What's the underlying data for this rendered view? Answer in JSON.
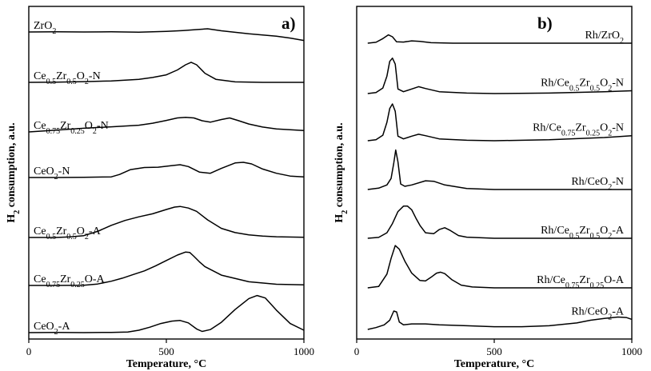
{
  "chart_data": [
    {
      "type": "line",
      "panel_label": "a)",
      "ylabel": "H",
      "ylabel_sub": "2",
      "ylabel_rest": " consumption, a.u.",
      "xlabel": "Temperature, °C",
      "xlim": [
        0,
        1000
      ],
      "xticks": [
        0,
        500,
        1000
      ],
      "yticks": [],
      "series": [
        {
          "label": [
            {
              "t": "ZrO"
            },
            {
              "t": "2",
              "sub": true
            }
          ],
          "baseline": 1.0,
          "x": [
            0,
            100,
            200,
            300,
            400,
            500,
            560,
            610,
            650,
            700,
            800,
            900,
            950,
            1000
          ],
          "y": [
            0,
            0.02,
            0,
            0.01,
            -0.01,
            0.05,
            0.12,
            0.2,
            0.26,
            0.1,
            -0.15,
            -0.35,
            -0.5,
            -0.7
          ]
        },
        {
          "label": [
            {
              "t": "Ce"
            },
            {
              "t": "0.5",
              "sub": true
            },
            {
              "t": "Zr"
            },
            {
              "t": "0.5",
              "sub": true
            },
            {
              "t": "O"
            },
            {
              "t": "2",
              "sub": true
            },
            {
              "t": "-N"
            }
          ],
          "baseline": 2.55,
          "x": [
            0,
            100,
            200,
            300,
            400,
            450,
            500,
            540,
            570,
            590,
            610,
            640,
            680,
            750,
            850,
            1000
          ],
          "y": [
            0,
            0.02,
            0.06,
            0.12,
            0.25,
            0.4,
            0.62,
            1.02,
            1.45,
            1.65,
            1.45,
            0.75,
            0.25,
            0.04,
            0,
            0
          ]
        },
        {
          "label": [
            {
              "t": "Ce"
            },
            {
              "t": "0.75",
              "sub": true
            },
            {
              "t": "Zr"
            },
            {
              "t": "0.25",
              "sub": true
            },
            {
              "t": "O"
            },
            {
              "t": "2",
              "sub": true
            },
            {
              "t": "-N"
            }
          ],
          "baseline": 4.08,
          "x": [
            0,
            100,
            200,
            300,
            400,
            450,
            500,
            540,
            570,
            600,
            630,
            660,
            700,
            730,
            760,
            800,
            850,
            900,
            1000
          ],
          "y": [
            0,
            0.15,
            0.3,
            0.42,
            0.55,
            0.72,
            0.95,
            1.15,
            1.2,
            1.15,
            0.92,
            0.8,
            1.02,
            1.15,
            0.95,
            0.65,
            0.4,
            0.25,
            0.12
          ]
        },
        {
          "label": [
            {
              "t": "CeO"
            },
            {
              "t": "2",
              "sub": true
            },
            {
              "t": "-N"
            }
          ],
          "baseline": 5.6,
          "x": [
            0,
            100,
            200,
            300,
            330,
            370,
            420,
            470,
            520,
            550,
            580,
            620,
            660,
            700,
            750,
            780,
            810,
            850,
            900,
            950,
            1000
          ],
          "y": [
            0,
            0,
            0.02,
            0.05,
            0.25,
            0.65,
            0.82,
            0.85,
            0.98,
            1.05,
            0.9,
            0.45,
            0.35,
            0.75,
            1.2,
            1.25,
            1.12,
            0.7,
            0.35,
            0.12,
            0.05
          ]
        },
        {
          "label": [
            {
              "t": "Ce"
            },
            {
              "t": "0.5",
              "sub": true
            },
            {
              "t": "Zr"
            },
            {
              "t": "0.5",
              "sub": true
            },
            {
              "t": "O"
            },
            {
              "t": "2",
              "sub": true
            },
            {
              "t": "-A"
            }
          ],
          "baseline": 7.1,
          "x": [
            0,
            100,
            150,
            200,
            250,
            300,
            350,
            400,
            450,
            500,
            530,
            550,
            580,
            610,
            650,
            700,
            750,
            800,
            850,
            900,
            1000
          ],
          "y": [
            0,
            0,
            0.05,
            0.15,
            0.5,
            1.0,
            1.4,
            1.7,
            1.95,
            2.3,
            2.5,
            2.55,
            2.42,
            2.15,
            1.45,
            0.75,
            0.4,
            0.22,
            0.12,
            0.06,
            0.02
          ]
        },
        {
          "label": [
            {
              "t": "Ce"
            },
            {
              "t": "0.75",
              "sub": true
            },
            {
              "t": "Zr"
            },
            {
              "t": "0.25",
              "sub": true
            },
            {
              "t": "O-A"
            }
          ],
          "baseline": 8.7,
          "x": [
            0,
            100,
            200,
            250,
            300,
            340,
            380,
            420,
            460,
            500,
            540,
            570,
            585,
            600,
            620,
            640,
            700,
            800,
            900,
            1000
          ],
          "y": [
            0,
            0,
            0.02,
            0.12,
            0.35,
            0.6,
            0.9,
            1.2,
            1.6,
            2.05,
            2.5,
            2.75,
            2.72,
            2.4,
            1.95,
            1.55,
            0.85,
            0.3,
            0.1,
            0.05
          ]
        },
        {
          "label": [
            {
              "t": "CeO"
            },
            {
              "t": "2",
              "sub": true
            },
            {
              "t": "-A"
            }
          ],
          "baseline": 10.3,
          "x": [
            0,
            100,
            200,
            300,
            360,
            400,
            440,
            480,
            520,
            550,
            580,
            610,
            630,
            660,
            700,
            750,
            800,
            830,
            860,
            900,
            950,
            1000
          ],
          "y": [
            0,
            0.02,
            0,
            0.02,
            0.05,
            0.2,
            0.45,
            0.75,
            0.95,
            1.0,
            0.8,
            0.3,
            0.1,
            0.25,
            0.85,
            1.9,
            2.8,
            3.05,
            2.85,
            1.85,
            0.75,
            0.2
          ]
        }
      ]
    },
    {
      "type": "line",
      "panel_label": "b)",
      "ylabel": "H",
      "ylabel_sub": "2",
      "ylabel_rest": " consumption, a.u.",
      "xlabel": "Temperature, °C",
      "xlim": [
        0,
        1000
      ],
      "xticks": [
        0,
        500,
        1000
      ],
      "yticks": [],
      "series": [
        {
          "label": [
            {
              "t": "Rh/ZrO"
            },
            {
              "t": "2",
              "sub": true
            }
          ],
          "baseline": 1.0,
          "x": [
            40,
            70,
            95,
            115,
            130,
            145,
            170,
            200,
            230,
            270,
            350,
            500,
            700,
            900,
            1000
          ],
          "y": [
            0,
            0.1,
            0.5,
            0.9,
            0.7,
            0.15,
            0.12,
            0.25,
            0.2,
            0.05,
            0,
            0,
            0,
            0,
            0
          ]
        },
        {
          "label": [
            {
              "t": "Rh/Ce"
            },
            {
              "t": "0.5",
              "sub": true
            },
            {
              "t": "Zr"
            },
            {
              "t": "0.5",
              "sub": true
            },
            {
              "t": "O"
            },
            {
              "t": "2",
              "sub": true
            },
            {
              "t": "-N"
            }
          ],
          "baseline": 2.55,
          "x": [
            40,
            70,
            95,
            110,
            120,
            130,
            140,
            150,
            170,
            200,
            225,
            250,
            300,
            400,
            500,
            700,
            900,
            1000
          ],
          "y": [
            0,
            0.1,
            0.6,
            1.9,
            3.5,
            3.85,
            3.2,
            0.5,
            0.2,
            0.5,
            0.75,
            0.55,
            0.2,
            0.05,
            0,
            0.05,
            0.2,
            0.3
          ]
        },
        {
          "label": [
            {
              "t": "Rh/Ce"
            },
            {
              "t": "0.75",
              "sub": true
            },
            {
              "t": "Zr"
            },
            {
              "t": "0.25",
              "sub": true
            },
            {
              "t": "O"
            },
            {
              "t": "2",
              "sub": true
            },
            {
              "t": "-N"
            }
          ],
          "baseline": 4.08,
          "x": [
            40,
            70,
            95,
            110,
            120,
            130,
            140,
            150,
            170,
            200,
            225,
            250,
            300,
            400,
            500,
            700,
            900,
            1000
          ],
          "y": [
            0,
            0.1,
            0.6,
            2.0,
            3.5,
            4.0,
            3.2,
            0.5,
            0.2,
            0.5,
            0.7,
            0.55,
            0.2,
            0.05,
            0,
            0.1,
            0.35,
            0.55
          ]
        },
        {
          "label": [
            {
              "t": "Rh/CeO"
            },
            {
              "t": "2",
              "sub": true
            },
            {
              "t": "-N"
            }
          ],
          "baseline": 5.6,
          "x": [
            40,
            80,
            110,
            125,
            135,
            142,
            150,
            160,
            175,
            200,
            250,
            280,
            320,
            400,
            500,
            700,
            900,
            1000
          ],
          "y": [
            0,
            0.15,
            0.5,
            1.2,
            2.9,
            4.3,
            3.0,
            0.6,
            0.35,
            0.5,
            0.95,
            0.9,
            0.5,
            0.1,
            0,
            0,
            0,
            0
          ]
        },
        {
          "label": [
            {
              "t": "Rh/Ce"
            },
            {
              "t": "0.5",
              "sub": true
            },
            {
              "t": "Zr"
            },
            {
              "t": "0.5",
              "sub": true
            },
            {
              "t": "O"
            },
            {
              "t": "2",
              "sub": true
            },
            {
              "t": "-A"
            }
          ],
          "baseline": 7.1,
          "x": [
            40,
            80,
            110,
            130,
            150,
            170,
            185,
            200,
            215,
            230,
            250,
            280,
            300,
            320,
            340,
            370,
            400,
            500,
            700,
            900,
            1000
          ],
          "y": [
            0,
            0.1,
            0.6,
            1.6,
            2.9,
            3.5,
            3.5,
            3.1,
            2.2,
            1.4,
            0.6,
            0.5,
            0.95,
            1.15,
            0.85,
            0.3,
            0.12,
            0,
            0,
            0,
            0
          ]
        },
        {
          "label": [
            {
              "t": "Rh/Ce"
            },
            {
              "t": "0.75",
              "sub": true
            },
            {
              "t": "Zr"
            },
            {
              "t": "0.25",
              "sub": true
            },
            {
              "t": "O-A"
            }
          ],
          "baseline": 8.7,
          "x": [
            40,
            80,
            110,
            125,
            140,
            155,
            175,
            200,
            230,
            250,
            270,
            290,
            305,
            320,
            345,
            380,
            420,
            500,
            700,
            900,
            1000
          ],
          "y": [
            0,
            0.15,
            1.5,
            3.2,
            4.6,
            4.2,
            2.9,
            1.6,
            0.8,
            0.75,
            1.15,
            1.6,
            1.7,
            1.55,
            0.9,
            0.3,
            0.1,
            0,
            0,
            0,
            0
          ]
        },
        {
          "label": [
            {
              "t": "Rh/CeO"
            },
            {
              "t": "2",
              "sub": true
            },
            {
              "t": "-A"
            }
          ],
          "baseline": 10.3,
          "x": [
            40,
            70,
            100,
            120,
            135,
            145,
            155,
            170,
            200,
            250,
            300,
            400,
            500,
            600,
            700,
            800,
            850,
            900,
            950,
            980,
            1000
          ],
          "y": [
            0,
            0.2,
            0.5,
            1.0,
            2.0,
            1.9,
            0.8,
            0.5,
            0.6,
            0.6,
            0.5,
            0.4,
            0.3,
            0.3,
            0.4,
            0.7,
            1.0,
            1.2,
            1.35,
            1.3,
            1.1
          ]
        }
      ]
    }
  ]
}
